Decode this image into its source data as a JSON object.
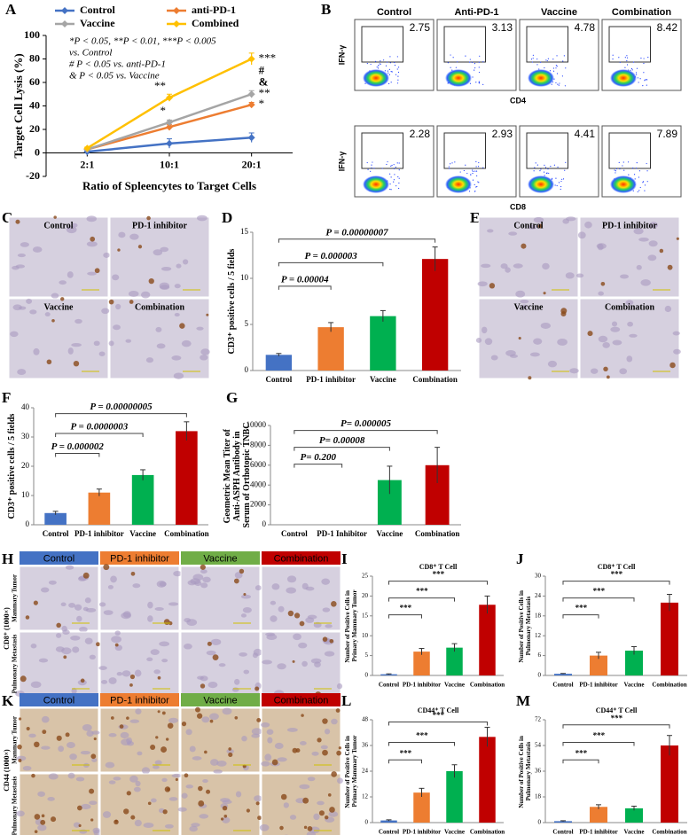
{
  "panel_labels": [
    "A",
    "B",
    "C",
    "D",
    "E",
    "F",
    "G",
    "H",
    "I",
    "J",
    "K",
    "L",
    "M"
  ],
  "chart_data": [
    {
      "type": "line",
      "x_label": "Ratio of Spleencytes to Target Cells",
      "y_label": "Target Cell Lysis (%)",
      "categories": [
        "2:1",
        "10:1",
        "20:1"
      ],
      "series": [
        {
          "name": "Control",
          "color": "#4472c4",
          "values": [
            1,
            8,
            13
          ],
          "errors": [
            1,
            4,
            4
          ],
          "point_labels": [
            null,
            null,
            null
          ]
        },
        {
          "name": "anti-PD-1",
          "color": "#ed7d31",
          "values": [
            3,
            22,
            41
          ],
          "errors": [
            1,
            2,
            2
          ],
          "point_labels": [
            null,
            null,
            "*"
          ]
        },
        {
          "name": "Vaccine",
          "color": "#a5a5a5",
          "values": [
            3,
            26,
            50
          ],
          "errors": [
            1,
            2,
            3
          ],
          "point_labels": [
            null,
            "*",
            "**"
          ]
        },
        {
          "name": "Combined",
          "color": "#ffc000",
          "values": [
            4,
            47,
            80
          ],
          "errors": [
            1,
            3,
            5
          ],
          "point_labels": [
            null,
            "**",
            "***"
          ]
        }
      ],
      "endpoint_marks": [
        "#",
        "&"
      ],
      "annotations": [
        "*P < 0.05, **P < 0.01, ***P < 0.005",
        "vs. Control",
        "# P < 0.05 vs. anti-PD-1",
        "& P < 0.05 vs. Vaccine"
      ],
      "ylim": [
        -20,
        100
      ],
      "yticks": [
        -20,
        0,
        20,
        40,
        60,
        80,
        100
      ]
    },
    {
      "type": "bar",
      "y_label": "CD3⁺ positive cells / 5 fields",
      "categories": [
        "Control",
        "PD-1 inhibitor",
        "Vaccine",
        "Combination"
      ],
      "values": [
        1.7,
        4.7,
        5.9,
        12.1
      ],
      "errors": [
        0.15,
        0.5,
        0.6,
        1.3
      ],
      "colors": [
        "#4472c4",
        "#ed7d31",
        "#00b050",
        "#c00000"
      ],
      "comparisons": [
        "P = 0.00004",
        "P = 0.000003",
        "P = 0.00000007"
      ],
      "ylim": [
        0,
        15
      ],
      "yticks": [
        0,
        5,
        10,
        15
      ]
    },
    {
      "type": "bar",
      "y_label": "CD3⁺ positive cells / 5 fields",
      "categories": [
        "Control",
        "PD-1 inhibitor",
        "Vaccine",
        "Combination"
      ],
      "values": [
        4,
        11,
        17,
        32
      ],
      "errors": [
        0.6,
        1.2,
        1.8,
        3.2
      ],
      "colors": [
        "#4472c4",
        "#ed7d31",
        "#00b050",
        "#c00000"
      ],
      "comparisons": [
        "P = 0.000002",
        "P = 0.0000003",
        "P = 0.00000005"
      ],
      "ylim": [
        0,
        40
      ],
      "yticks": [
        0,
        10,
        20,
        30,
        40
      ]
    },
    {
      "type": "bar",
      "y_label": "Geometric Mean Titer of Anti-ASPH Antibody in Serum of Orthotopic TNBC",
      "categories": [
        "Control",
        "PD-1 Inhibitor",
        "Vaccine",
        "Combination"
      ],
      "values": [
        0,
        0,
        4500,
        6000
      ],
      "errors": [
        0,
        0,
        1400,
        1800
      ],
      "colors": [
        "#4472c4",
        "#ed7d31",
        "#00b050",
        "#c00000"
      ],
      "comparisons": [
        "P= 0.200",
        "P= 0.00008",
        "P= 0.000005"
      ],
      "ylim": [
        0,
        10000
      ],
      "yticks": [
        0,
        2000,
        4000,
        6000,
        8000,
        10000
      ]
    },
    {
      "type": "bar",
      "title": "CD8⁺ T Cell",
      "y_label": "Number of Positive Cells in Primary Mammary Tumor",
      "categories": [
        "Control",
        "PD-1 inhibitor",
        "Vaccine",
        "Combination"
      ],
      "values": [
        0.3,
        6,
        7,
        17.8
      ],
      "errors": [
        0.1,
        0.8,
        1,
        2.2
      ],
      "colors": [
        "#4472c4",
        "#ed7d31",
        "#00b050",
        "#c00000"
      ],
      "comparisons": [
        "***",
        "***",
        "***"
      ],
      "ylim": [
        0,
        25
      ],
      "yticks": [
        0,
        5,
        10,
        15,
        20,
        25
      ]
    },
    {
      "type": "bar",
      "title": "CD8⁺ T Cell",
      "y_label": "Number of Positive Cells in Pulmonary Metastasis",
      "categories": [
        "Control",
        "PD-1 inhibitor",
        "Vaccine",
        "Combination"
      ],
      "values": [
        0.5,
        6,
        7.5,
        22
      ],
      "errors": [
        0.1,
        1,
        1.2,
        2.5
      ],
      "colors": [
        "#4472c4",
        "#ed7d31",
        "#00b050",
        "#c00000"
      ],
      "comparisons": [
        "***",
        "***",
        "***"
      ],
      "ylim": [
        0,
        30
      ],
      "yticks": [
        0,
        6,
        12,
        18,
        24,
        30
      ]
    },
    {
      "type": "bar",
      "title": "CD44⁺ T Cell",
      "y_label": "Number of Positive Cells in Primary Mammary Tumor",
      "categories": [
        "Control",
        "PD-1 inhibitor",
        "Vaccine",
        "Combination"
      ],
      "values": [
        1,
        14,
        24,
        40
      ],
      "errors": [
        0.3,
        2,
        3,
        4.5
      ],
      "colors": [
        "#4472c4",
        "#ed7d31",
        "#00b050",
        "#c00000"
      ],
      "comparisons": [
        "***",
        "***",
        "***"
      ],
      "ylim": [
        0,
        48
      ],
      "yticks": [
        0,
        12,
        24,
        36,
        48
      ]
    },
    {
      "type": "bar",
      "title": "CD44⁺ T Cell",
      "y_label": "Number of Positive Cells in Pulmonary Metastasis",
      "categories": [
        "Control",
        "PD-1 inhibitor",
        "Vaccine",
        "Combination"
      ],
      "values": [
        1,
        11,
        10,
        54
      ],
      "errors": [
        0.3,
        1.5,
        1.5,
        7
      ],
      "colors": [
        "#4472c4",
        "#ed7d31",
        "#00b050",
        "#c00000"
      ],
      "comparisons": [
        "***",
        "***",
        "***"
      ],
      "ylim": [
        0,
        72
      ],
      "yticks": [
        0,
        18,
        36,
        54,
        72
      ]
    }
  ],
  "flow": {
    "headers": [
      "Control",
      "Anti-PD-1",
      "Vaccine",
      "Combination"
    ],
    "rows": [
      {
        "y_label": "IFN-γ",
        "x_label": "CD4",
        "values": [
          "2.75",
          "3.13",
          "4.78",
          "8.42"
        ]
      },
      {
        "y_label": "IFN-γ",
        "x_label": "CD8",
        "values": [
          "2.28",
          "2.93",
          "4.41",
          "7.89"
        ]
      }
    ]
  },
  "micrographs": [
    {
      "labels": [
        "Control",
        "PD-1 inhibitor",
        "Vaccine",
        "Combination"
      ]
    },
    {
      "labels": [
        "Control",
        "PD-1 inhibitor",
        "Vaccine",
        "Combination"
      ]
    }
  ],
  "stain_grids": [
    {
      "headers": [
        {
          "text": "Control",
          "color": "#4472c4"
        },
        {
          "text": "PD-1 inhibitor",
          "color": "#ed7d31"
        },
        {
          "text": "Vaccine",
          "color": "#70ad47"
        },
        {
          "text": "Combination",
          "color": "#c00000"
        }
      ],
      "side_label": "CD8⁺ (1000×)",
      "row_labels": [
        "Mammary Tumor",
        "Pulmonary Metastasis"
      ]
    },
    {
      "headers": [
        {
          "text": "Control",
          "color": "#4472c4"
        },
        {
          "text": "PD-1 inhibitor",
          "color": "#ed7d31"
        },
        {
          "text": "Vaccine",
          "color": "#70ad47"
        },
        {
          "text": "Combination",
          "color": "#c00000"
        }
      ],
      "side_label": "CD44 (1000×)",
      "row_labels": [
        "Mammary Tumor",
        "Pulmonary Metastasis"
      ]
    }
  ]
}
